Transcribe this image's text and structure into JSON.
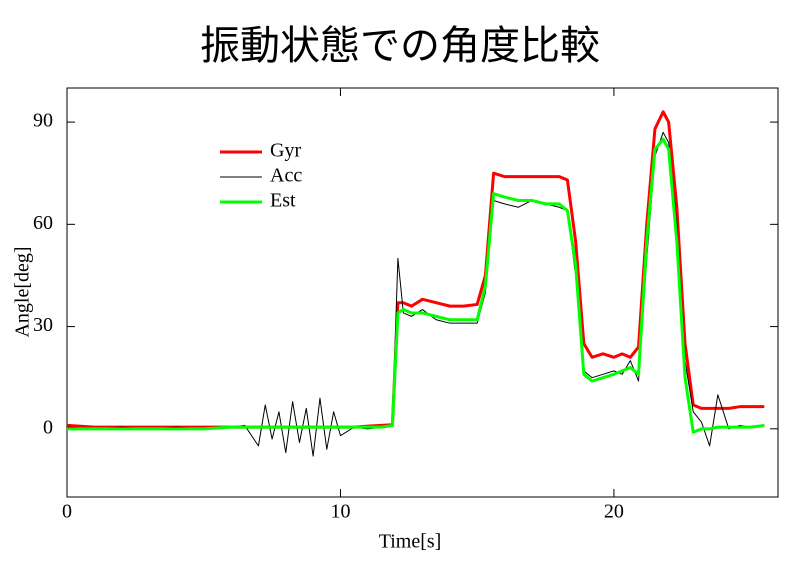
{
  "chart_data": {
    "type": "line",
    "title": "振動状態での角度比較",
    "x_label": "Time[s]",
    "y_label": "Angle[deg]",
    "xlim": [
      0,
      26
    ],
    "ylim": [
      -20,
      100
    ],
    "xticks": [
      0,
      10,
      20
    ],
    "yticks": [
      0,
      30,
      60,
      90
    ],
    "legend": "upper-left",
    "x": [
      0,
      1,
      2,
      3,
      4,
      5,
      6,
      6.5,
      7,
      7.25,
      7.5,
      7.75,
      8,
      8.25,
      8.5,
      8.75,
      9,
      9.25,
      9.5,
      9.75,
      10,
      10.5,
      11,
      11.5,
      11.9,
      12.1,
      12.3,
      12.6,
      13,
      13.5,
      14,
      14.5,
      15,
      15.3,
      15.6,
      16,
      16.5,
      17,
      17.5,
      18,
      18.3,
      18.6,
      18.9,
      19.2,
      19.6,
      20,
      20.3,
      20.6,
      20.9,
      21.2,
      21.5,
      21.8,
      22,
      22.3,
      22.6,
      22.9,
      23.2,
      23.5,
      23.8,
      24.2,
      24.6,
      25,
      25.5
    ],
    "series": [
      {
        "name": "Gyr",
        "color": "#ff0000",
        "width": 3,
        "values": [
          1,
          0.5,
          0.5,
          0.5,
          0.5,
          0.5,
          0.5,
          0.5,
          0.5,
          0.5,
          0.5,
          0.5,
          0.5,
          0.5,
          0.5,
          0.5,
          0.5,
          0.5,
          0.5,
          0.5,
          0.5,
          0.5,
          0.8,
          1,
          1.2,
          37,
          37,
          36,
          38,
          37,
          36,
          36,
          36.5,
          45,
          75,
          74,
          74,
          74,
          74,
          74,
          73,
          55,
          25,
          21,
          22,
          21,
          22,
          21,
          24,
          60,
          88,
          93,
          90,
          65,
          25,
          7,
          6,
          6,
          6,
          6,
          6.5,
          6.5,
          6.5
        ]
      },
      {
        "name": "Acc",
        "color": "#000000",
        "width": 1,
        "values": [
          0.5,
          0,
          0.5,
          0,
          0.5,
          0,
          0.5,
          1,
          -5,
          7,
          -3,
          5,
          -7,
          8,
          -4,
          6,
          -8,
          9,
          -6,
          5,
          -2,
          0.5,
          0,
          0.5,
          1,
          50,
          34,
          33,
          35,
          32,
          31,
          31,
          31,
          40,
          67,
          66,
          65,
          67,
          66,
          65,
          64,
          45,
          17,
          15,
          16,
          17,
          16,
          20,
          14,
          50,
          80,
          87,
          84,
          60,
          20,
          5,
          2,
          -5,
          10,
          0,
          1,
          0.5,
          1
        ]
      },
      {
        "name": "Est",
        "color": "#00ff00",
        "width": 3,
        "values": [
          0,
          0,
          0,
          0,
          0,
          0,
          0.5,
          0.5,
          0.5,
          0.5,
          0.5,
          0.5,
          0.5,
          0.5,
          0.5,
          0.5,
          0.5,
          0.5,
          0.5,
          0.5,
          0.5,
          0.5,
          0.5,
          0.5,
          1,
          34,
          35,
          34,
          34,
          33,
          32,
          32,
          32,
          42,
          69,
          68,
          67,
          67,
          66,
          66,
          64,
          48,
          16,
          14,
          15,
          16,
          17,
          18,
          16,
          55,
          82,
          85,
          82,
          55,
          15,
          -1,
          0,
          0,
          0.5,
          0.5,
          0.5,
          0.5,
          1
        ]
      }
    ]
  }
}
